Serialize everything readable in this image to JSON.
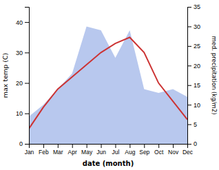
{
  "chart_data": {
    "type": "line",
    "categories": [
      "Jan",
      "Feb",
      "Mar",
      "Apr",
      "May",
      "Jun",
      "Jul",
      "Aug",
      "Sep",
      "Oct",
      "Nov",
      "Dec"
    ],
    "series": [
      {
        "type": "area",
        "color": "#b8c8ee",
        "axis": "y2",
        "values": [
          7,
          10,
          14,
          18,
          30,
          29,
          22,
          29,
          14,
          13,
          14,
          12
        ]
      },
      {
        "type": "line",
        "color": "#cc3333",
        "values": [
          5,
          12,
          18,
          22,
          26,
          30,
          33,
          35,
          30,
          20,
          14,
          8
        ]
      }
    ],
    "xlabel": "date (month)",
    "ylabel": "max temp (C)",
    "y2label": "med. precipitation (kg/m2)",
    "ylim": [
      0,
      45
    ],
    "yticks": [
      0,
      10,
      20,
      30,
      40
    ],
    "y2lim": [
      0,
      35
    ],
    "y2ticks": [
      0,
      5,
      10,
      15,
      20,
      25,
      30,
      35
    ],
    "grid": false
  }
}
